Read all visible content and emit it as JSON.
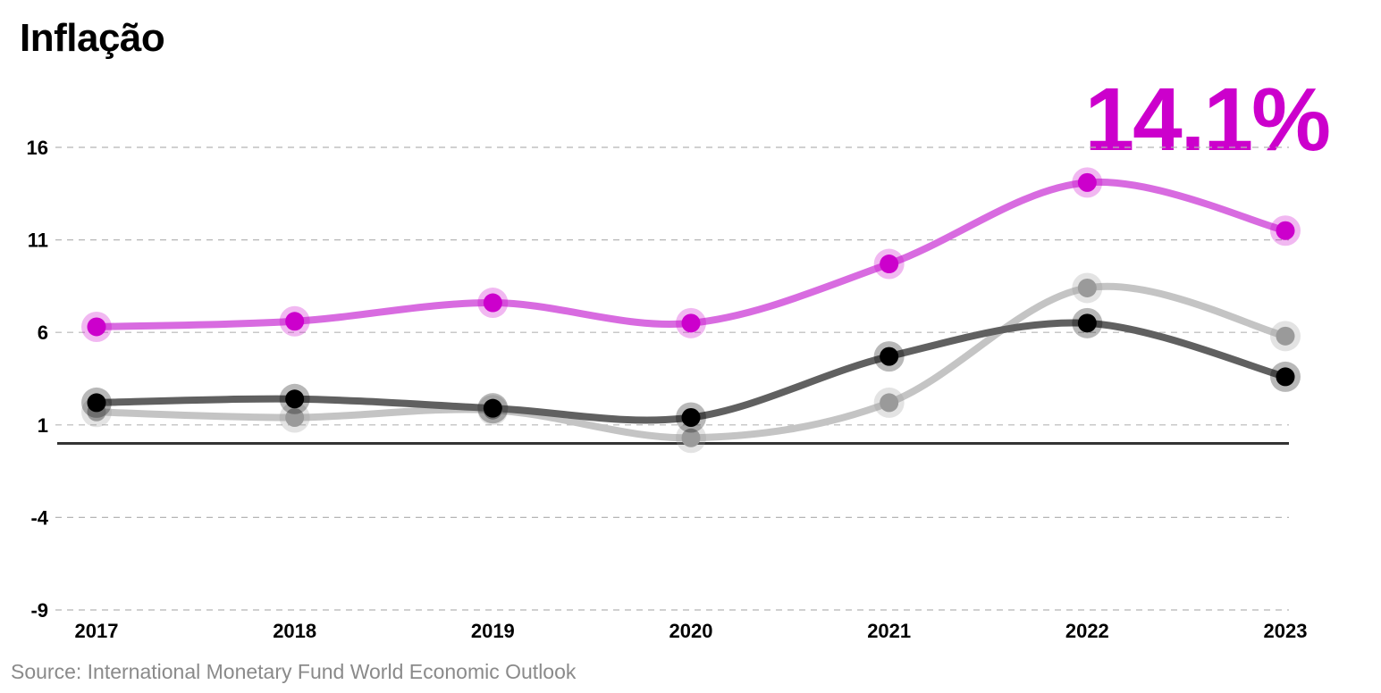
{
  "chart_data": {
    "type": "line",
    "title": "Inflação",
    "highlight_label": "14.1%",
    "source": "Source: International Monetary Fund World Economic Outlook",
    "x": [
      "2017",
      "2018",
      "2019",
      "2020",
      "2021",
      "2022",
      "2023"
    ],
    "yticks": [
      "16",
      "11",
      "6",
      "1",
      "-4",
      "-9"
    ],
    "ylim": [
      -9,
      16
    ],
    "baseline": 0,
    "grid": true,
    "series": [
      {
        "values": [
          6.3,
          6.6,
          7.6,
          6.5,
          9.7,
          14.1,
          11.5
        ],
        "color": "#d86be0",
        "point_color": "#cc00cc"
      },
      {
        "values": [
          1.7,
          1.4,
          1.8,
          0.3,
          2.2,
          8.4,
          5.8
        ],
        "color": "#c4c4c4",
        "point_color": "#9a9a9a"
      },
      {
        "values": [
          2.2,
          2.4,
          1.9,
          1.4,
          4.7,
          6.5,
          3.6
        ],
        "color": "#606060",
        "point_color": "#000000"
      }
    ],
    "highlight_color": "#cc00cc"
  }
}
